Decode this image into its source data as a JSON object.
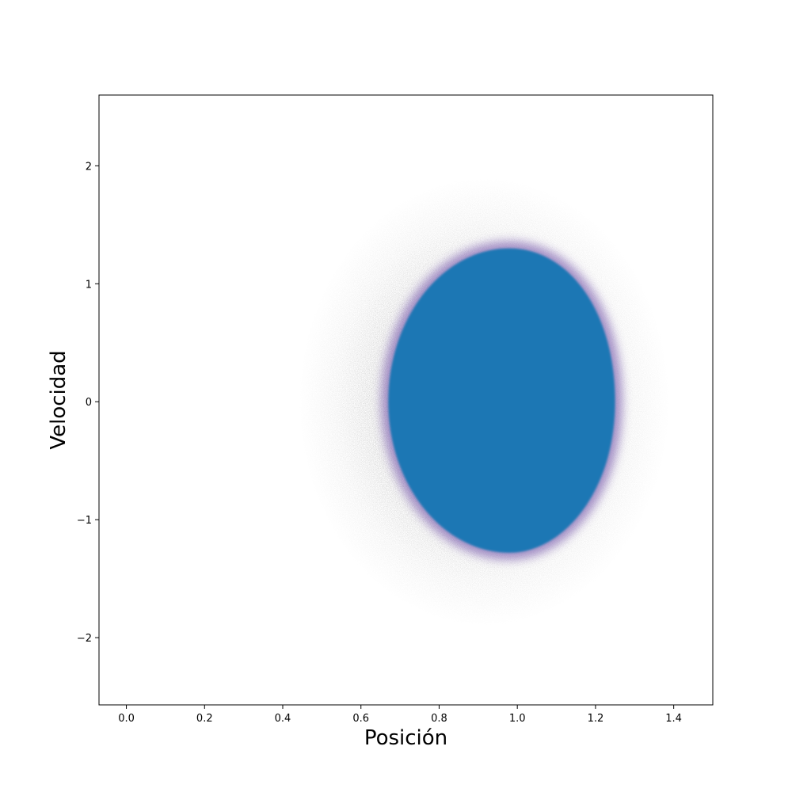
{
  "chart_data": {
    "type": "scatter",
    "xlabel": "Posición",
    "ylabel": "Velocidad",
    "xlim": [
      -0.07,
      1.5
    ],
    "ylim": [
      -2.57,
      2.6
    ],
    "x_ticks": [
      0.0,
      0.2,
      0.4,
      0.6,
      0.8,
      1.0,
      1.2,
      1.4
    ],
    "x_tick_labels": [
      "0.0",
      "0.2",
      "0.4",
      "0.6",
      "0.8",
      "1.0",
      "1.2",
      "1.4"
    ],
    "y_ticks": [
      2,
      1,
      0,
      -1,
      -2
    ],
    "y_tick_labels": [
      "2",
      "1",
      "0",
      "−1",
      "−2"
    ],
    "grid": false,
    "series": [
      {
        "name": "",
        "shape": "dense point cloud (phase-space distribution)",
        "center": [
          0.98,
          0.0
        ],
        "core_x_range": [
          0.67,
          1.25
        ],
        "core_y_range": [
          -1.28,
          1.3
        ],
        "halo_x_range": [
          0.4,
          1.35
        ],
        "halo_y_range": [
          -1.9,
          1.9
        ],
        "core_color": "#1f77b4",
        "edge_color": "#8a6fb8",
        "halo_color": "#000000"
      }
    ]
  }
}
